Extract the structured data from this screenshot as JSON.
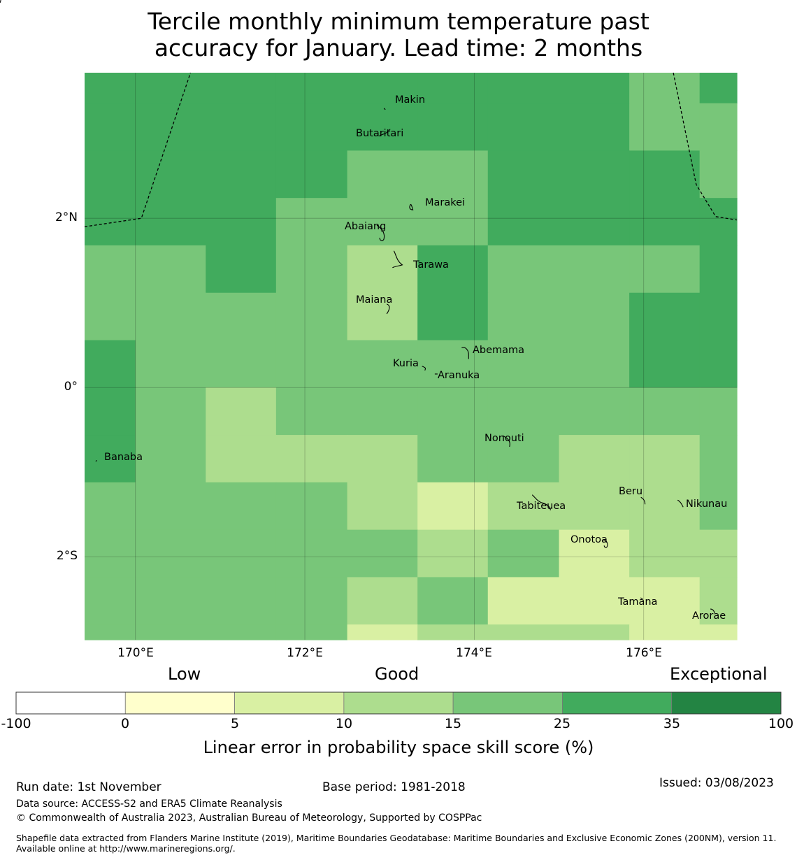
{
  "title": {
    "line1": "Tercile monthly minimum temperature past",
    "line2": "accuracy for January. Lead time: 2 months"
  },
  "map": {
    "lat_range": [
      -2.98,
      3.72
    ],
    "lon_range": [
      169.4,
      177.1
    ],
    "lat_labels": [
      {
        "value": 2,
        "label": "2°N"
      },
      {
        "value": 0,
        "label": "0°"
      },
      {
        "value": -2,
        "label": "2°S"
      }
    ],
    "lon_labels": [
      {
        "value": 170,
        "label": "170°E"
      },
      {
        "value": 172,
        "label": "172°E"
      },
      {
        "value": 174,
        "label": "174°E"
      },
      {
        "value": 176,
        "label": "176°E"
      }
    ],
    "grid_cols_lon": [
      169.4,
      170.0,
      170.83,
      171.66,
      172.5,
      173.33,
      174.16,
      175.0,
      175.83,
      176.66,
      177.1
    ],
    "grid_rows_lat": [
      3.72,
      3.36,
      2.8,
      2.24,
      1.68,
      1.12,
      0.56,
      0.0,
      -0.56,
      -1.12,
      -1.68,
      -2.24,
      -2.8,
      -2.98
    ],
    "skill_grid": [
      [
        30,
        30,
        30,
        30,
        30,
        30,
        30,
        30,
        20,
        30
      ],
      [
        30,
        30,
        30,
        30,
        30,
        30,
        30,
        30,
        20,
        20
      ],
      [
        30,
        30,
        30,
        30,
        20,
        20,
        30,
        30,
        30,
        20
      ],
      [
        30,
        30,
        30,
        20,
        20,
        20,
        30,
        30,
        30,
        30
      ],
      [
        20,
        20,
        30,
        20,
        12,
        30,
        20,
        20,
        20,
        30
      ],
      [
        20,
        20,
        20,
        20,
        12,
        30,
        20,
        20,
        30,
        30
      ],
      [
        30,
        20,
        20,
        20,
        20,
        20,
        20,
        20,
        30,
        30
      ],
      [
        30,
        20,
        12,
        20,
        20,
        20,
        20,
        20,
        20,
        20
      ],
      [
        30,
        20,
        12,
        12,
        12,
        20,
        20,
        12,
        12,
        20
      ],
      [
        20,
        20,
        20,
        20,
        12,
        7,
        12,
        12,
        12,
        20
      ],
      [
        20,
        20,
        20,
        20,
        20,
        12,
        20,
        7,
        12,
        12
      ],
      [
        20,
        20,
        20,
        20,
        12,
        20,
        7,
        7,
        7,
        12
      ],
      [
        20,
        20,
        20,
        20,
        7,
        12,
        12,
        12,
        7,
        7
      ]
    ],
    "islands": [
      {
        "name": "Makin",
        "lon": 173.0,
        "lat": 3.35
      },
      {
        "name": "Butaritari",
        "lon": 172.9,
        "lat": 3.02
      },
      {
        "name": "Marakei",
        "lon": 173.3,
        "lat": 2.1
      },
      {
        "name": "Abaiang",
        "lon": 172.95,
        "lat": 1.82
      },
      {
        "name": "Tarawa",
        "lon": 173.15,
        "lat": 1.45
      },
      {
        "name": "Maiana",
        "lon": 173.0,
        "lat": 0.97
      },
      {
        "name": "Abemama",
        "lon": 173.9,
        "lat": 0.42
      },
      {
        "name": "Kuria",
        "lon": 173.4,
        "lat": 0.22
      },
      {
        "name": "Aranuka",
        "lon": 173.6,
        "lat": 0.16
      },
      {
        "name": "Banaba",
        "lon": 169.53,
        "lat": -0.87
      },
      {
        "name": "Nonouti",
        "lon": 174.4,
        "lat": -0.65
      },
      {
        "name": "Tabiteuea",
        "lon": 174.8,
        "lat": -1.35
      },
      {
        "name": "Beru",
        "lon": 176.0,
        "lat": -1.33
      },
      {
        "name": "Nikunau",
        "lon": 176.45,
        "lat": -1.38
      },
      {
        "name": "Onotoa",
        "lon": 175.55,
        "lat": -1.85
      },
      {
        "name": "Tamana",
        "lon": 175.98,
        "lat": -2.5
      },
      {
        "name": "Arorae",
        "lon": 176.82,
        "lat": -2.65
      }
    ],
    "eez_west": [
      [
        169.4,
        1.9
      ],
      [
        170.07,
        2.0
      ],
      [
        170.65,
        3.72
      ]
    ],
    "eez_east": [
      [
        176.35,
        3.72
      ],
      [
        176.62,
        2.4
      ],
      [
        176.85,
        2.02
      ],
      [
        177.1,
        1.98
      ]
    ]
  },
  "legend": {
    "categories": {
      "low": "Low",
      "good": "Good",
      "exceptional": "Exceptional"
    },
    "bins": [
      {
        "from": -100,
        "to": 0,
        "color": "#ffffff"
      },
      {
        "from": 0,
        "to": 5,
        "color": "#ffffcc"
      },
      {
        "from": 5,
        "to": 10,
        "color": "#d9f0a3"
      },
      {
        "from": 10,
        "to": 15,
        "color": "#addd8e"
      },
      {
        "from": 15,
        "to": 25,
        "color": "#78c679"
      },
      {
        "from": 25,
        "to": 35,
        "color": "#41ab5d"
      },
      {
        "from": 35,
        "to": 100,
        "color": "#238443"
      }
    ],
    "tick_labels": [
      "-100",
      "0",
      "5",
      "10",
      "15",
      "25",
      "35",
      "100"
    ],
    "axis_title": "Linear error in probability space skill score (%)"
  },
  "footer": {
    "run_date": "Run date: 1st November",
    "base_period": "Base period: 1981-2018",
    "issued": "Issued: 03/08/2023",
    "data_source": "Data source: ACCESS-S2 and ERA5 Climate Reanalysis",
    "copyright": "© Commonwealth of Australia 2023, Australian Bureau of Meteorology, Supported by COSPPac",
    "shapefile": "Shapefile data extracted from Flanders Marine Institute (2019), Maritime Boundaries Geodatabase: Maritime Boundaries and Exclusive Economic Zones (200NM), version 11. Available online at http://www.marineregions.org/."
  }
}
